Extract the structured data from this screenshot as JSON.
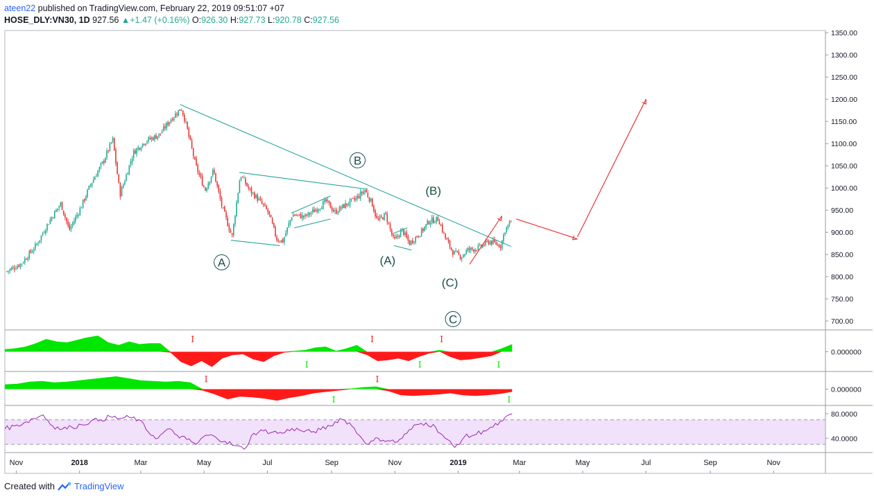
{
  "header": {
    "user": "ateen22",
    "published_text": " published on TradingView.com, February 22, 2019 09:51:07 +07",
    "symbol": "HOSE_DLY:VN30, 1D",
    "last": "927.56",
    "change": "+1.47 (+0.16%)",
    "o_label": "O:",
    "o_value": "926.30",
    "h_label": "H:",
    "h_value": "927.73",
    "l_label": "L:",
    "l_value": "920.78",
    "c_label": "C:",
    "c_value": "927.56"
  },
  "footer": {
    "prefix": "Created with",
    "brand": "TradingView"
  },
  "colors": {
    "up": "#22ab94",
    "down": "#e53935",
    "trend": "#26a69a",
    "arrow": "#e53935",
    "rsi": "#9c27b0",
    "rsi_band": "#f1e1fb",
    "osc_pos": "#00e600",
    "osc_neg": "#ff1a1a"
  },
  "chart_data": {
    "type": "candlestick",
    "price_axis": {
      "ticks": [
        "1350.00",
        "1300.00",
        "1250.00",
        "1200.00",
        "1150.00",
        "1100.00",
        "1050.00",
        "1000.00",
        "950.00",
        "900.00",
        "850.00",
        "800.00",
        "750.00",
        "700.00"
      ],
      "range": [
        680,
        1355
      ]
    },
    "time_axis": {
      "ticks": [
        "Nov",
        "2018",
        "Mar",
        "May",
        "Jul",
        "Sep",
        "Nov",
        "2019",
        "Mar",
        "May",
        "Jul",
        "Sep",
        "Nov"
      ]
    },
    "close_series": [
      {
        "d": "2017-10-23",
        "v": 812
      },
      {
        "d": "2017-11-06",
        "v": 830
      },
      {
        "d": "2017-11-20",
        "v": 870
      },
      {
        "d": "2017-12-04",
        "v": 930
      },
      {
        "d": "2017-12-14",
        "v": 965
      },
      {
        "d": "2017-12-22",
        "v": 905
      },
      {
        "d": "2018-01-02",
        "v": 955
      },
      {
        "d": "2018-01-12",
        "v": 1010
      },
      {
        "d": "2018-01-24",
        "v": 1060
      },
      {
        "d": "2018-02-02",
        "v": 1110
      },
      {
        "d": "2018-02-09",
        "v": 985
      },
      {
        "d": "2018-02-22",
        "v": 1080
      },
      {
        "d": "2018-03-05",
        "v": 1105
      },
      {
        "d": "2018-03-19",
        "v": 1120
      },
      {
        "d": "2018-03-30",
        "v": 1155
      },
      {
        "d": "2018-04-09",
        "v": 1180
      },
      {
        "d": "2018-04-13",
        "v": 1150
      },
      {
        "d": "2018-04-23",
        "v": 1050
      },
      {
        "d": "2018-05-02",
        "v": 995
      },
      {
        "d": "2018-05-10",
        "v": 1040
      },
      {
        "d": "2018-05-18",
        "v": 960
      },
      {
        "d": "2018-05-28",
        "v": 890
      },
      {
        "d": "2018-06-05",
        "v": 1030
      },
      {
        "d": "2018-06-14",
        "v": 995
      },
      {
        "d": "2018-06-22",
        "v": 975
      },
      {
        "d": "2018-07-02",
        "v": 945
      },
      {
        "d": "2018-07-10",
        "v": 885
      },
      {
        "d": "2018-07-16",
        "v": 880
      },
      {
        "d": "2018-07-25",
        "v": 940
      },
      {
        "d": "2018-08-06",
        "v": 935
      },
      {
        "d": "2018-08-16",
        "v": 950
      },
      {
        "d": "2018-08-27",
        "v": 970
      },
      {
        "d": "2018-09-04",
        "v": 945
      },
      {
        "d": "2018-09-13",
        "v": 960
      },
      {
        "d": "2018-09-24",
        "v": 975
      },
      {
        "d": "2018-10-03",
        "v": 995
      },
      {
        "d": "2018-10-10",
        "v": 965
      },
      {
        "d": "2018-10-15",
        "v": 925
      },
      {
        "d": "2018-10-23",
        "v": 940
      },
      {
        "d": "2018-10-31",
        "v": 880
      },
      {
        "d": "2018-11-08",
        "v": 905
      },
      {
        "d": "2018-11-15",
        "v": 875
      },
      {
        "d": "2018-11-26",
        "v": 900
      },
      {
        "d": "2018-12-04",
        "v": 925
      },
      {
        "d": "2018-12-13",
        "v": 930
      },
      {
        "d": "2018-12-19",
        "v": 890
      },
      {
        "d": "2018-12-27",
        "v": 855
      },
      {
        "d": "2019-01-04",
        "v": 845
      },
      {
        "d": "2019-01-10",
        "v": 860
      },
      {
        "d": "2019-01-21",
        "v": 865
      },
      {
        "d": "2019-01-31",
        "v": 880
      },
      {
        "d": "2019-02-11",
        "v": 870
      },
      {
        "d": "2019-02-15",
        "v": 905
      },
      {
        "d": "2019-02-21",
        "v": 925
      }
    ],
    "trendlines": [
      {
        "from": [
          "2018-04-08",
          1188
        ],
        "to": [
          "2019-02-21",
          868
        ]
      },
      {
        "from": [
          "2018-05-27",
          882
        ],
        "to": [
          "2018-07-13",
          870
        ]
      },
      {
        "from": [
          "2018-06-04",
          1035
        ],
        "to": [
          "2018-10-06",
          997
        ]
      },
      {
        "from": [
          "2018-07-24",
          943
        ],
        "to": [
          "2018-08-31",
          982
        ]
      },
      {
        "from": [
          "2018-07-27",
          910
        ],
        "to": [
          "2018-08-31",
          930
        ]
      },
      {
        "from": [
          "2018-10-31",
          870
        ],
        "to": [
          "2018-11-17",
          860
        ]
      },
      {
        "from": [
          "2018-10-31",
          898
        ],
        "to": [
          "2018-11-13",
          910
        ]
      }
    ],
    "projection_arrows": [
      {
        "from": [
          "2019-01-12",
          828
        ],
        "to": [
          "2019-02-12",
          937
        ]
      },
      {
        "from": [
          "2019-02-26",
          930
        ],
        "to": [
          "2019-04-26",
          885
        ]
      },
      {
        "from": [
          "2019-04-26",
          890
        ],
        "to": [
          "2019-07-01",
          1200
        ]
      }
    ],
    "wave_labels": [
      {
        "text": "A",
        "circled": true,
        "d": "2018-05-18",
        "v": 823
      },
      {
        "text": "B",
        "circled": true,
        "d": "2018-09-26",
        "v": 1053
      },
      {
        "text": "(A)",
        "circled": false,
        "d": "2018-10-25",
        "v": 828
      },
      {
        "text": "(B)",
        "circled": false,
        "d": "2018-12-08",
        "v": 985
      },
      {
        "text": "(C)",
        "circled": false,
        "d": "2018-12-24",
        "v": 778
      },
      {
        "text": "C",
        "circled": true,
        "d": "2018-12-27",
        "v": 695
      }
    ],
    "oscillator_1": {
      "axis_label": "0.000000",
      "values": [
        0.15,
        0.2,
        0.3,
        0.5,
        0.75,
        0.6,
        0.55,
        0.7,
        0.85,
        0.95,
        0.55,
        0.4,
        0.6,
        0.45,
        0.5,
        0.5,
        -0.05,
        -0.6,
        -0.85,
        -0.55,
        -0.9,
        -0.4,
        -0.2,
        -0.15,
        -0.45,
        -0.6,
        -0.25,
        -0.05,
        0.05,
        0.1,
        0.25,
        0.3,
        0.05,
        0.2,
        0.4,
        -0.2,
        -0.55,
        -0.5,
        -0.4,
        -0.55,
        -0.3,
        -0.1,
        0.1,
        -0.3,
        -0.5,
        -0.45,
        -0.35,
        -0.25,
        0.2,
        0.45
      ],
      "markers": [
        {
          "d": "2018-04-20",
          "c": "down"
        },
        {
          "d": "2018-08-08",
          "c": "up"
        },
        {
          "d": "2018-10-10",
          "c": "down"
        },
        {
          "d": "2018-11-25",
          "c": "up"
        },
        {
          "d": "2018-12-16",
          "c": "down"
        },
        {
          "d": "2019-02-09",
          "c": "up"
        }
      ]
    },
    "oscillator_2": {
      "axis_label": "0.000000",
      "values": [
        0.35,
        0.4,
        0.55,
        0.6,
        0.5,
        0.55,
        0.65,
        0.75,
        0.85,
        0.95,
        0.8,
        0.65,
        0.6,
        0.55,
        0.6,
        0.5,
        -0.1,
        -0.4,
        -0.75,
        -0.55,
        -0.6,
        -0.7,
        -0.85,
        -0.65,
        -0.5,
        -0.3,
        -0.2,
        -0.1,
        0.05,
        0.15,
        0.2,
        -0.15,
        -0.45,
        -0.5,
        -0.45,
        -0.4,
        -0.3,
        -0.45,
        -0.5,
        -0.45,
        -0.35,
        -0.2
      ],
      "markers": [
        {
          "d": "2018-05-03",
          "c": "down"
        },
        {
          "d": "2018-09-03",
          "c": "up"
        },
        {
          "d": "2018-10-15",
          "c": "down"
        },
        {
          "d": "2019-02-19",
          "c": "up"
        }
      ]
    },
    "rsi": {
      "ticks": [
        "80.0000",
        "40.0000"
      ],
      "upper": 70,
      "lower": 30,
      "values": [
        55,
        60,
        65,
        72,
        78,
        60,
        55,
        58,
        62,
        68,
        70,
        75,
        72,
        74,
        70,
        50,
        40,
        55,
        45,
        38,
        30,
        45,
        42,
        35,
        28,
        22,
        48,
        52,
        50,
        48,
        56,
        52,
        50,
        54,
        60,
        72,
        65,
        45,
        30,
        40,
        36,
        34,
        48,
        62,
        65,
        58,
        40,
        25,
        42,
        45,
        52,
        58,
        68,
        80
      ]
    }
  }
}
